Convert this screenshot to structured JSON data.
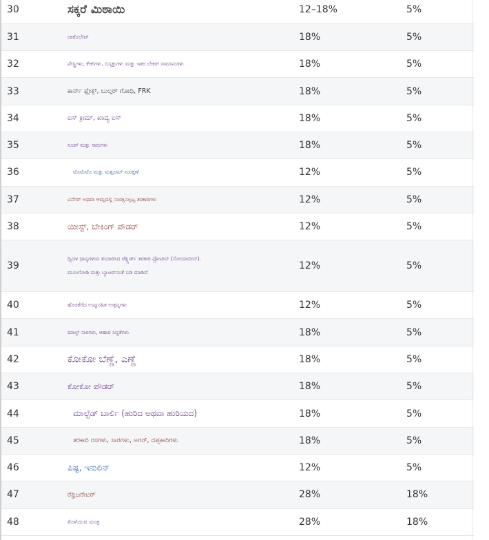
{
  "rows": [
    {
      "num": "30",
      "item": "ಸಕ್ಕರೆ ಮಿಠಾಯಿ",
      "old": "12–18%",
      "new": "5%"
    },
    {
      "num": "31",
      "item": "ಚಾಕೊಲೇಟ್",
      "old": "18%",
      "new": "5%"
    },
    {
      "num": "32",
      "item": "ಪೇಸ್ಟ್ರಿಗಳು, ಕೇಕ್‌ಗಳು, ಬಿಸ್ಕತ್ತುಗಳು ಮತ್ತು ಇತರ ಬೇಕರ್ ಸಾಮಾನುಗಳು",
      "old": "18%",
      "new": "5%"
    },
    {
      "num": "33",
      "item": "ಕಾರ್ನ್ ಫ್ಲೇಕ್ಸ್, ಬುಲ್ಗರ್ ಗೋಧಿ, FRK",
      "old": "18%",
      "new": "5%"
    },
    {
      "num": "34",
      "item": "ಐಸ್ ಕ್ರೀಮ್, ಖಾದ್ಯ ಐಸ್",
      "old": "18%",
      "new": "5%"
    },
    {
      "num": "35",
      "item": "ಸೂಪ್ ಮತ್ತು ಸಾರುಗಳು",
      "old": "18%",
      "new": "5%"
    },
    {
      "num": "36",
      "item": "ಟೊಮೆಟೊ ಮತ್ತು ಮಶ್ರೂಮ್ ಸಂರಕ್ಷಣೆ",
      "old": "12%",
      "new": "5%"
    },
    {
      "num": "37",
      "item": "ವಿನೆಗರ್ ಅಥವಾ ಆಮ್ಲದಲ್ಲಿ ಸಂರಕ್ಷಿಸಲ್ಪಟ್ಟ ತರಕಾರಿಗಳು",
      "old": "12%",
      "new": "5%"
    },
    {
      "num": "38",
      "item": "ಯೀಸ್ಟ್, ಬೇಕಿಂಗ್ ಪೌಡರ್",
      "old": "12%",
      "new": "5%"
    },
    {
      "num": "39",
      "item": "ದ್ವಿದಳ ಧಾನ್ಯಗಳಿಂದ ತಯಾರಿಸಿದ ಟೆಕ್ಸ್ಚರ್ಡ್ ತರಕಾರಿ ಪ್ರೋಟೀನ್ (ಸೋಯಾಬೀನ್).",
      "item2": "ಮೂಂಗೋಡಿ ಮತ್ತು ಬ್ಯಾಟರ್‌ನಂತೆ ಬಡಿ ಮಾಡಿದೆ",
      "old": "12%",
      "new": "5%"
    },
    {
      "num": "40",
      "item": "ಹೊರತೆಗೆದ ಉಪ್ಪುಸಹಿತ ಉತ್ಪನ್ನಗಳು",
      "old": "12%",
      "new": "5%"
    },
    {
      "num": "41",
      "item": "ಮಾಲ್ಟ್ ಸಾರಗಳು, ಆಹಾರ ಸಿದ್ಧತೆಗಳು",
      "old": "18%",
      "new": "5%"
    },
    {
      "num": "42",
      "item": "ಕೋಕೋ ಬೆಣ್ಣೆ, ಎಣ್ಣೆ",
      "old": "18%",
      "new": "5%"
    },
    {
      "num": "43",
      "item": "ಕೋಕೋ ಪೌಡರ್",
      "old": "18%",
      "new": "5%"
    },
    {
      "num": "44",
      "item": "ಮಾಲ್ಟೆಡ್ ಬಾರ್ಲಿ (ಹುರಿದ ಅಥವಾ ಹುರಿಯದ)",
      "old": "18%",
      "new": "5%"
    },
    {
      "num": "45",
      "item": "ತರಕಾರಿ ರಸಗಳು, ಸಾರಗಳು, ಅಗರ್, ದಪ್ಪಕಾರಿಗಳು",
      "old": "18%",
      "new": "5%"
    },
    {
      "num": "46",
      "item": "ಪಿಷ್ಟ, ಇನುಲಿನ್",
      "old": "12%",
      "new": "5%"
    },
    {
      "num": "47",
      "item": "ರೆಫ್ರಿಜರೇಟರ್",
      "old": "28%",
      "new": "18%"
    },
    {
      "num": "48",
      "item": "ತೊಳೆಯುವ ಯಂತ್ರ",
      "old": "28%",
      "new": "18%"
    }
  ]
}
